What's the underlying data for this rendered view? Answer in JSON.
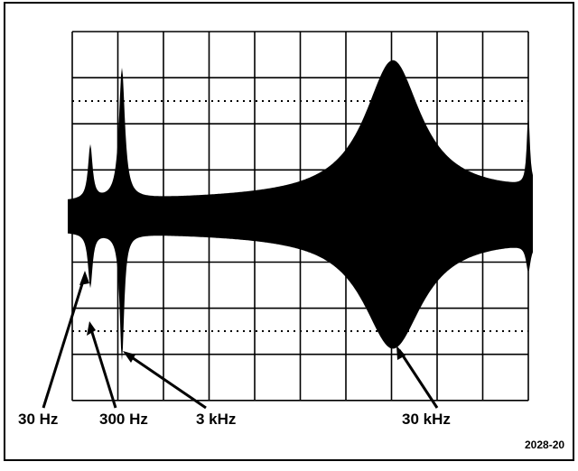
{
  "labels": [
    "30 Hz",
    "300 Hz",
    "3 kHz",
    "30 kHz"
  ],
  "figure_number": "2028-20"
}
